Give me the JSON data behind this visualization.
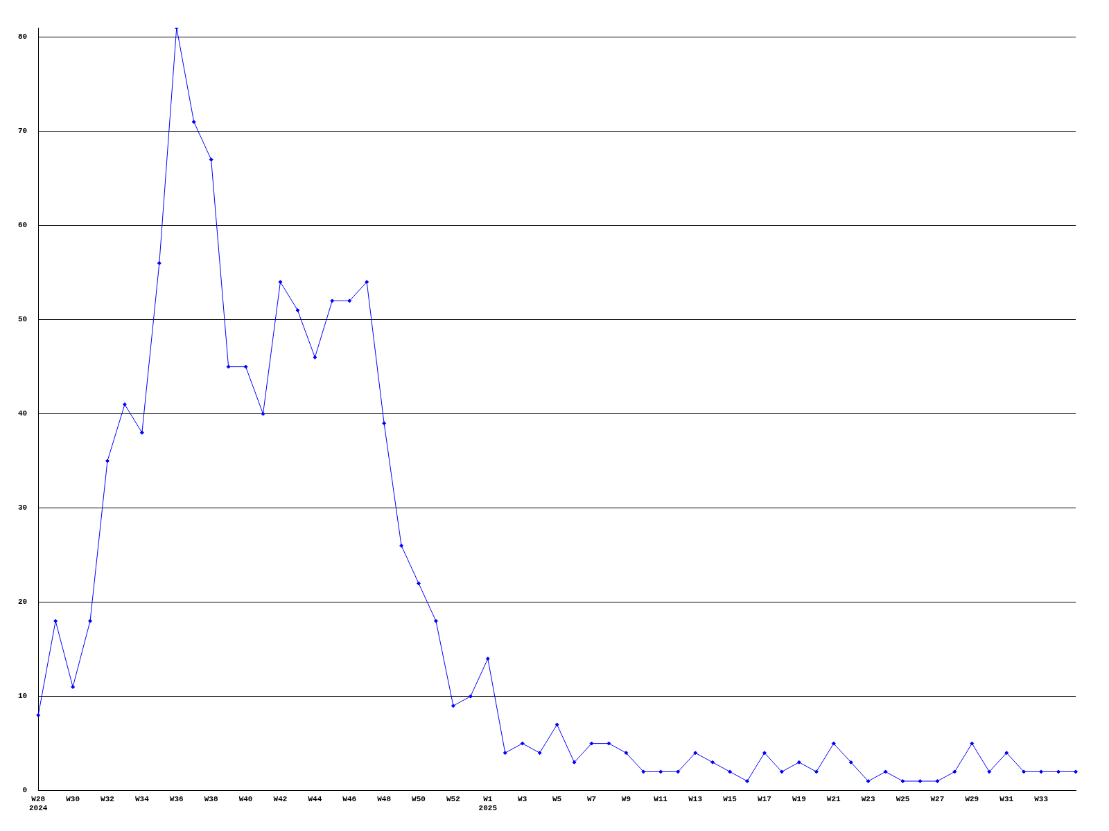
{
  "chart_data": {
    "type": "line",
    "categories": [
      "W28\n2024",
      null,
      "W30",
      null,
      "W32",
      null,
      "W34",
      null,
      "W36",
      null,
      "W38",
      null,
      "W40",
      null,
      "W42",
      null,
      "W44",
      null,
      "W46",
      null,
      "W48",
      null,
      "W50",
      null,
      "W52",
      null,
      "W1\n2025",
      null,
      "W3",
      null,
      "W5",
      null,
      "W7",
      null,
      "W9",
      null,
      "W11",
      null,
      "W13",
      null,
      "W15",
      null,
      "W17",
      null,
      "W19",
      null,
      "W21",
      null,
      "W23",
      null,
      "W25",
      null,
      "W27",
      null,
      "W29",
      null,
      "W31",
      null,
      "W33",
      null,
      null
    ],
    "series": [
      {
        "color": "#0000ff",
        "values": [
          8,
          18,
          11,
          18,
          35,
          41,
          38,
          56,
          81,
          71,
          67,
          45,
          45,
          40,
          54,
          51,
          46,
          52,
          52,
          54,
          39,
          26,
          22,
          18,
          9,
          10,
          14,
          4,
          5,
          4,
          7,
          3,
          5,
          5,
          4,
          2,
          2,
          2,
          4,
          3,
          2,
          1,
          4,
          2,
          3,
          2,
          5,
          3,
          1,
          2,
          1,
          1,
          1,
          2,
          5,
          2,
          4,
          2,
          2,
          2,
          2
        ]
      }
    ],
    "ylim": [
      0,
      81
    ],
    "yticks": [
      0,
      10,
      20,
      30,
      40,
      50,
      60,
      70,
      80
    ],
    "grid": "y",
    "legend": false,
    "marker": "diamond",
    "line_style": "solid"
  }
}
